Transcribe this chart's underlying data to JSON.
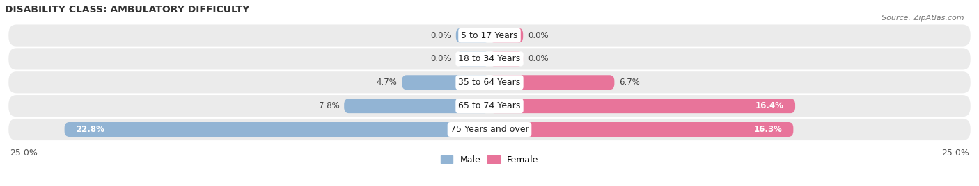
{
  "title": "DISABILITY CLASS: AMBULATORY DIFFICULTY",
  "source": "Source: ZipAtlas.com",
  "categories": [
    "5 to 17 Years",
    "18 to 34 Years",
    "35 to 64 Years",
    "65 to 74 Years",
    "75 Years and over"
  ],
  "male_values": [
    0.0,
    0.0,
    4.7,
    7.8,
    22.8
  ],
  "female_values": [
    0.0,
    0.0,
    6.7,
    16.4,
    16.3
  ],
  "max_value": 25.0,
  "male_color": "#92b4d4",
  "female_color": "#e8749a",
  "male_label": "Male",
  "female_label": "Female",
  "row_bg_color": "#ebebeb",
  "title_fontsize": 10,
  "label_fontsize": 8.5,
  "tick_fontsize": 9,
  "bar_height": 0.62,
  "min_bar_width": 1.8
}
